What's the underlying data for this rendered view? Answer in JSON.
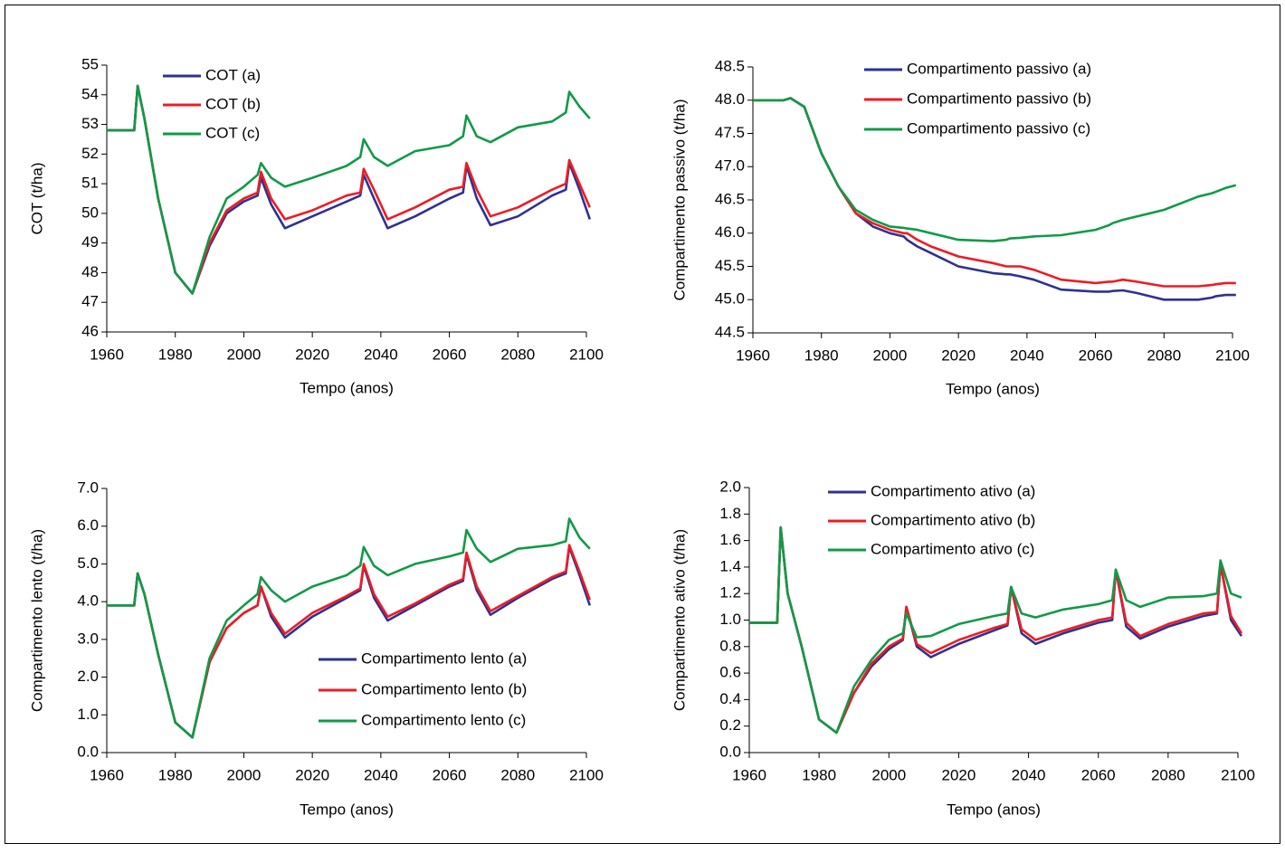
{
  "chart_data": [
    {
      "type": "line",
      "ylabel": "COT (t/ha)",
      "xlabel": "Tempo (anos)",
      "legend": "upper left",
      "xlim": [
        1960,
        2100
      ],
      "xticks": [
        1960,
        1980,
        2000,
        2020,
        2040,
        2060,
        2080,
        2100
      ],
      "ylim": [
        46,
        55
      ],
      "yticks": [
        46,
        47,
        48,
        49,
        50,
        51,
        52,
        53,
        54,
        55
      ],
      "x": [
        1960,
        1968,
        1969,
        1971,
        1975,
        1980,
        1985,
        1990,
        1995,
        2000,
        2004,
        2005,
        2008,
        2012,
        2020,
        2030,
        2034,
        2035,
        2038,
        2042,
        2050,
        2060,
        2064,
        2065,
        2068,
        2072,
        2080,
        2090,
        2094,
        2095,
        2098,
        2101
      ],
      "series": [
        {
          "name": "COT (a)",
          "color": "#2e3192",
          "values": [
            52.8,
            52.8,
            54.3,
            53.2,
            50.5,
            48.0,
            47.3,
            48.9,
            50.0,
            50.4,
            50.6,
            51.2,
            50.3,
            49.5,
            49.9,
            50.4,
            50.6,
            51.3,
            50.5,
            49.5,
            49.9,
            50.5,
            50.7,
            51.6,
            50.5,
            49.6,
            49.9,
            50.6,
            50.8,
            51.7,
            50.8,
            49.8
          ]
        },
        {
          "name": "COT (b)",
          "color": "#ed1c24",
          "values": [
            52.8,
            52.8,
            54.3,
            53.2,
            50.5,
            48.0,
            47.3,
            49.0,
            50.1,
            50.5,
            50.7,
            51.4,
            50.5,
            49.8,
            50.1,
            50.6,
            50.7,
            51.5,
            50.8,
            49.8,
            50.2,
            50.8,
            50.9,
            51.7,
            50.8,
            49.9,
            50.2,
            50.8,
            51.0,
            51.8,
            51.0,
            50.2
          ]
        },
        {
          "name": "COT (c)",
          "color": "#109a48",
          "values": [
            52.8,
            52.8,
            54.3,
            53.2,
            50.5,
            48.0,
            47.3,
            49.2,
            50.5,
            50.9,
            51.3,
            51.7,
            51.2,
            50.9,
            51.2,
            51.6,
            51.9,
            52.5,
            51.9,
            51.6,
            52.1,
            52.3,
            52.6,
            53.3,
            52.6,
            52.4,
            52.9,
            53.1,
            53.4,
            54.1,
            53.6,
            53.2
          ]
        }
      ]
    },
    {
      "type": "line",
      "ylabel": "Compartimento passivo (t/ha)",
      "xlabel": "Tempo (anos)",
      "legend": "upper right",
      "xlim": [
        1960,
        2100
      ],
      "xticks": [
        1960,
        1980,
        2000,
        2020,
        2040,
        2060,
        2080,
        2100
      ],
      "ylim": [
        44.5,
        48.5
      ],
      "yticks": [
        44.5,
        {
          "value": 45,
          "label": "45.0"
        },
        45.5,
        {
          "value": 46,
          "label": "46.0"
        },
        46.5,
        {
          "value": 47,
          "label": "47.0"
        },
        47.5,
        {
          "value": 48,
          "label": "48.0"
        },
        48.5
      ],
      "x": [
        1960,
        1968,
        1969,
        1971,
        1975,
        1980,
        1985,
        1990,
        1995,
        2000,
        2004,
        2005,
        2008,
        2012,
        2020,
        2030,
        2034,
        2035,
        2038,
        2042,
        2050,
        2060,
        2064,
        2065,
        2068,
        2072,
        2080,
        2090,
        2094,
        2095,
        2098,
        2101
      ],
      "series": [
        {
          "name": "Compartimento passivo (a)",
          "color": "#2e3192",
          "values": [
            48.0,
            48.0,
            48.0,
            48.03,
            47.9,
            47.2,
            46.7,
            46.3,
            46.1,
            46.0,
            45.95,
            45.9,
            45.8,
            45.7,
            45.5,
            45.4,
            45.38,
            45.38,
            45.35,
            45.3,
            45.15,
            45.12,
            45.12,
            45.13,
            45.14,
            45.1,
            45.0,
            45.0,
            45.03,
            45.05,
            45.07,
            45.07
          ]
        },
        {
          "name": "Compartimento passivo (b)",
          "color": "#ed1c24",
          "values": [
            48.0,
            48.0,
            48.0,
            48.03,
            47.9,
            47.2,
            46.7,
            46.3,
            46.15,
            46.05,
            46.0,
            46.0,
            45.9,
            45.8,
            45.65,
            45.55,
            45.5,
            45.5,
            45.5,
            45.45,
            45.3,
            45.25,
            45.27,
            45.27,
            45.3,
            45.27,
            45.2,
            45.2,
            45.22,
            45.23,
            45.25,
            45.25
          ]
        },
        {
          "name": "Compartimento passivo (c)",
          "color": "#109a48",
          "values": [
            48.0,
            48.0,
            48.0,
            48.03,
            47.9,
            47.2,
            46.7,
            46.35,
            46.2,
            46.1,
            46.08,
            46.07,
            46.05,
            46.0,
            45.9,
            45.88,
            45.9,
            45.92,
            45.93,
            45.95,
            45.97,
            46.05,
            46.12,
            46.15,
            46.2,
            46.25,
            46.35,
            46.55,
            46.6,
            46.62,
            46.68,
            46.72
          ]
        }
      ]
    },
    {
      "type": "line",
      "ylabel": "Compartimento lento (t/ha)",
      "xlabel": "Tempo (anos)",
      "legend": "lower right",
      "xlim": [
        1960,
        2100
      ],
      "xticks": [
        1960,
        1980,
        2000,
        2020,
        2040,
        2060,
        2080,
        2100
      ],
      "ylim": [
        0,
        7
      ],
      "yticks": [
        {
          "value": 0,
          "label": "0.0"
        },
        {
          "value": 1,
          "label": "1.0"
        },
        {
          "value": 2,
          "label": "2.0"
        },
        {
          "value": 3,
          "label": "3.0"
        },
        {
          "value": 4,
          "label": "4.0"
        },
        {
          "value": 5,
          "label": "5.0"
        },
        {
          "value": 6,
          "label": "6.0"
        },
        {
          "value": 7,
          "label": "7.0"
        }
      ],
      "x": [
        1960,
        1968,
        1969,
        1971,
        1975,
        1980,
        1985,
        1990,
        1995,
        2000,
        2004,
        2005,
        2008,
        2012,
        2020,
        2030,
        2034,
        2035,
        2038,
        2042,
        2050,
        2060,
        2064,
        2065,
        2068,
        2072,
        2080,
        2090,
        2094,
        2095,
        2098,
        2101
      ],
      "series": [
        {
          "name": "Compartimento lento (a)",
          "color": "#2e3192",
          "values": [
            3.9,
            3.9,
            4.75,
            4.2,
            2.6,
            0.8,
            0.4,
            2.4,
            3.3,
            3.7,
            3.9,
            4.4,
            3.6,
            3.05,
            3.6,
            4.1,
            4.3,
            4.95,
            4.1,
            3.5,
            3.9,
            4.4,
            4.55,
            5.25,
            4.3,
            3.65,
            4.1,
            4.6,
            4.75,
            5.45,
            4.7,
            3.9
          ]
        },
        {
          "name": "Compartimento lento (b)",
          "color": "#ed1c24",
          "values": [
            3.9,
            3.9,
            4.75,
            4.2,
            2.6,
            0.8,
            0.4,
            2.4,
            3.3,
            3.7,
            3.9,
            4.4,
            3.7,
            3.15,
            3.7,
            4.15,
            4.35,
            5.0,
            4.2,
            3.6,
            3.95,
            4.45,
            4.6,
            5.3,
            4.4,
            3.75,
            4.15,
            4.65,
            4.8,
            5.5,
            4.8,
            4.05
          ]
        },
        {
          "name": "Compartimento lento (c)",
          "color": "#109a48",
          "values": [
            3.9,
            3.9,
            4.75,
            4.2,
            2.6,
            0.8,
            0.4,
            2.5,
            3.5,
            3.9,
            4.2,
            4.65,
            4.3,
            4.0,
            4.4,
            4.7,
            4.95,
            5.45,
            4.95,
            4.7,
            5.0,
            5.2,
            5.3,
            5.9,
            5.4,
            5.05,
            5.4,
            5.5,
            5.6,
            6.2,
            5.7,
            5.4
          ]
        }
      ]
    },
    {
      "type": "line",
      "ylabel": "Compartimento ativo (t/ha)",
      "xlabel": "Tempo (anos)",
      "legend": "upper left",
      "xlim": [
        1960,
        2100
      ],
      "xticks": [
        1960,
        1980,
        2000,
        2020,
        2040,
        2060,
        2080,
        2100
      ],
      "ylim": [
        0,
        2
      ],
      "yticks": [
        {
          "value": 0,
          "label": "0.0"
        },
        0.2,
        0.4,
        0.6,
        0.8,
        {
          "value": 1,
          "label": "1.0"
        },
        1.2,
        1.4,
        1.6,
        1.8,
        {
          "value": 2,
          "label": "2.0"
        }
      ],
      "x": [
        1960,
        1968,
        1969,
        1971,
        1975,
        1980,
        1985,
        1990,
        1995,
        2000,
        2004,
        2005,
        2008,
        2012,
        2020,
        2030,
        2034,
        2035,
        2038,
        2042,
        2050,
        2060,
        2064,
        2065,
        2068,
        2072,
        2080,
        2090,
        2094,
        2095,
        2098,
        2101
      ],
      "series": [
        {
          "name": "Compartimento ativo (a)",
          "color": "#2e3192",
          "values": [
            0.98,
            0.98,
            1.7,
            1.2,
            0.8,
            0.25,
            0.15,
            0.45,
            0.65,
            0.78,
            0.85,
            1.1,
            0.8,
            0.72,
            0.82,
            0.92,
            0.96,
            1.25,
            0.9,
            0.82,
            0.9,
            0.98,
            1.0,
            1.38,
            0.95,
            0.86,
            0.95,
            1.03,
            1.05,
            1.42,
            1.0,
            0.88
          ]
        },
        {
          "name": "Compartimento ativo (b)",
          "color": "#ed1c24",
          "values": [
            0.98,
            0.98,
            1.7,
            1.2,
            0.8,
            0.25,
            0.15,
            0.45,
            0.67,
            0.8,
            0.86,
            1.1,
            0.82,
            0.75,
            0.85,
            0.94,
            0.97,
            1.25,
            0.93,
            0.85,
            0.92,
            1.0,
            1.02,
            1.38,
            0.98,
            0.88,
            0.97,
            1.05,
            1.06,
            1.42,
            1.03,
            0.9
          ]
        },
        {
          "name": "Compartimento ativo (c)",
          "color": "#109a48",
          "values": [
            0.98,
            0.98,
            1.7,
            1.2,
            0.8,
            0.25,
            0.15,
            0.5,
            0.7,
            0.85,
            0.9,
            1.05,
            0.87,
            0.88,
            0.97,
            1.03,
            1.05,
            1.25,
            1.05,
            1.02,
            1.08,
            1.12,
            1.15,
            1.38,
            1.15,
            1.1,
            1.17,
            1.18,
            1.2,
            1.45,
            1.2,
            1.17
          ]
        }
      ]
    }
  ]
}
